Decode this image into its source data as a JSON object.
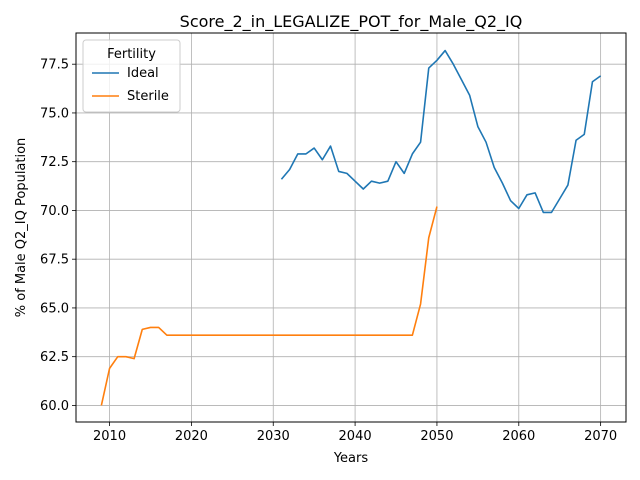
{
  "chart_data": {
    "type": "line",
    "title": "Score_2_in_LEGALIZE_POT_for_Male_Q2_IQ",
    "xlabel": "Years",
    "ylabel": "% of Male Q2_IQ Population",
    "xlim": [
      2005.9,
      2073.1
    ],
    "ylim": [
      59.15,
      79.1
    ],
    "xticks": [
      2010,
      2020,
      2030,
      2040,
      2050,
      2060,
      2070
    ],
    "yticks": [
      60.0,
      62.5,
      65.0,
      67.5,
      70.0,
      72.5,
      75.0,
      77.5
    ],
    "ytick_labels": [
      "60.0",
      "62.5",
      "65.0",
      "67.5",
      "70.0",
      "72.5",
      "75.0",
      "77.5"
    ],
    "grid": true,
    "legend": {
      "title": "Fertility",
      "placement": "top-left"
    },
    "series": [
      {
        "name": "Ideal",
        "color": "#1f77b4",
        "x": [
          2031,
          2032,
          2033,
          2034,
          2035,
          2036,
          2037,
          2038,
          2039,
          2040,
          2041,
          2042,
          2043,
          2044,
          2045,
          2046,
          2047,
          2048,
          2049,
          2050,
          2051,
          2052,
          2053,
          2054,
          2055,
          2056,
          2057,
          2058,
          2059,
          2060,
          2061,
          2062,
          2063,
          2064,
          2065,
          2066,
          2067,
          2068,
          2069,
          2070
        ],
        "y": [
          71.6,
          72.1,
          72.9,
          72.9,
          73.2,
          72.6,
          73.3,
          72.0,
          71.9,
          71.5,
          71.1,
          71.5,
          71.4,
          71.5,
          72.5,
          71.9,
          72.9,
          73.5,
          77.3,
          77.7,
          78.2,
          77.5,
          76.7,
          75.9,
          74.3,
          73.5,
          72.2,
          71.4,
          70.5,
          70.1,
          70.8,
          70.9,
          69.9,
          69.9,
          70.6,
          71.3,
          73.6,
          73.9,
          76.6,
          76.9
        ]
      },
      {
        "name": "Sterile",
        "color": "#ff7f0e",
        "x": [
          2009,
          2010,
          2011,
          2012,
          2013,
          2014,
          2015,
          2016,
          2017,
          2018,
          2019,
          2020,
          2021,
          2022,
          2023,
          2024,
          2025,
          2026,
          2027,
          2028,
          2029,
          2030,
          2031,
          2032,
          2033,
          2034,
          2035,
          2036,
          2037,
          2038,
          2039,
          2040,
          2041,
          2042,
          2043,
          2044,
          2045,
          2046,
          2047,
          2048,
          2049,
          2050
        ],
        "y": [
          60.0,
          61.9,
          62.5,
          62.5,
          62.4,
          63.9,
          64.0,
          64.0,
          63.6,
          63.6,
          63.6,
          63.6,
          63.6,
          63.6,
          63.6,
          63.6,
          63.6,
          63.6,
          63.6,
          63.6,
          63.6,
          63.6,
          63.6,
          63.6,
          63.6,
          63.6,
          63.6,
          63.6,
          63.6,
          63.6,
          63.6,
          63.6,
          63.6,
          63.6,
          63.6,
          63.6,
          63.6,
          63.6,
          63.6,
          65.2,
          68.6,
          70.2
        ]
      }
    ]
  }
}
